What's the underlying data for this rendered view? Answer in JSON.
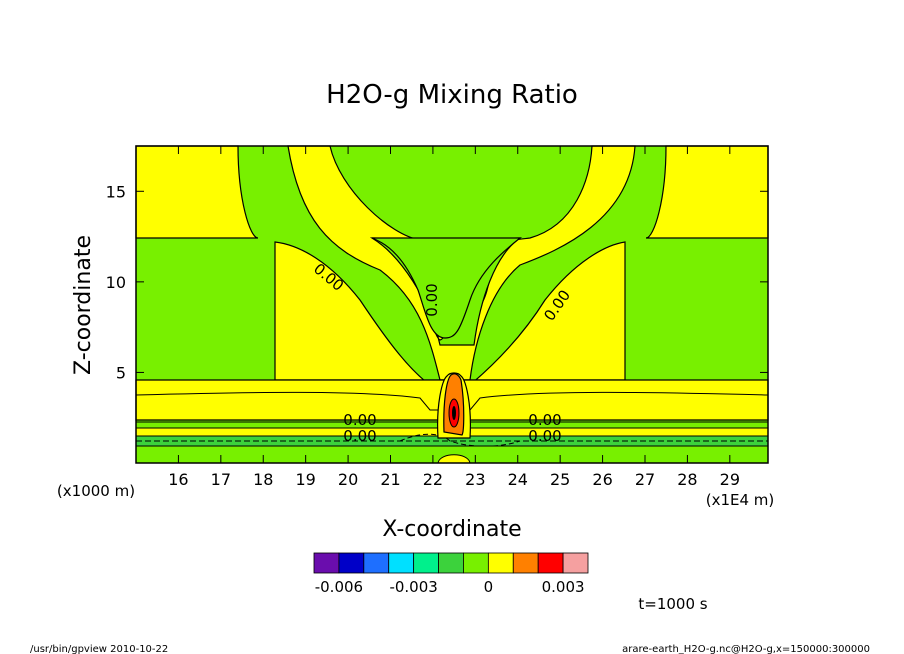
{
  "chart_data": {
    "type": "contour",
    "title": "H2O-g Mixing Ratio",
    "xlabel": "X-coordinate",
    "ylabel": "Z-coordinate",
    "x_unit": "(x1E4 m)",
    "y_unit": "(x1000 m)",
    "x_ticks": [
      "16",
      "17",
      "18",
      "19",
      "20",
      "21",
      "22",
      "23",
      "24",
      "25",
      "26",
      "27",
      "28",
      "29"
    ],
    "y_ticks": [
      "5",
      "10",
      "15"
    ],
    "xlim": [
      15,
      29.9
    ],
    "ylim": [
      0,
      17.5
    ],
    "contour_labels": [
      "0.00",
      "0.00",
      "0.00",
      "0.00",
      "0.00",
      "0.00",
      "0.00"
    ],
    "colorbar": {
      "tick_labels": [
        "-0.006",
        "-0.003",
        "0",
        "0.003"
      ],
      "colors": [
        "#6a0dad",
        "#0000c8",
        "#1e6fff",
        "#00e0ff",
        "#00f08c",
        "#3cd23c",
        "#78f000",
        "#ffff00",
        "#ff8000",
        "#ff0000",
        "#f5a0a0"
      ]
    },
    "time_label": "t=1000 s"
  },
  "footer": {
    "left": "/usr/bin/gpview   2010-10-22",
    "right": "arare-earth_H2O-g.nc@H2O-g,x=150000:300000"
  }
}
